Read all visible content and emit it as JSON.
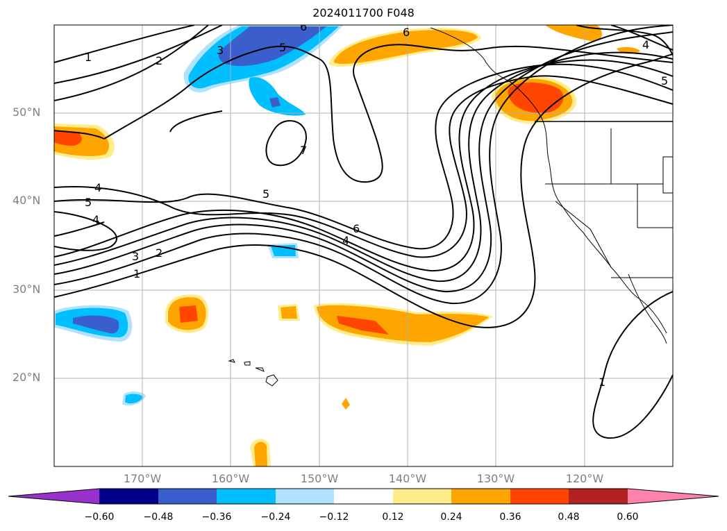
{
  "title": "2024011700 F048",
  "lat_labels": [
    "50°N",
    "40°N",
    "30°N",
    "20°N"
  ],
  "lon_labels": [
    "170°W",
    "160°W",
    "150°W",
    "140°W",
    "130°W",
    "120°W"
  ],
  "contour_labels": [
    "1",
    "2",
    "3",
    "6",
    "4",
    "5",
    "4",
    "5",
    "6",
    "3",
    "2",
    "1",
    "5",
    "6",
    "4",
    "7",
    "1",
    "4",
    "5"
  ],
  "colorbar": {
    "ticks": [
      "−0.60",
      "−0.48",
      "−0.36",
      "−0.24",
      "−0.12",
      "0.12",
      "0.24",
      "0.36",
      "0.48",
      "0.60"
    ],
    "colors": [
      "#9932cc",
      "#00008b",
      "#3a5fcd",
      "#00bfff",
      "#b0e2ff",
      "#ffffff",
      "#ffec8b",
      "#ffa500",
      "#ff4500",
      "#b22222",
      "#ff82ab"
    ]
  }
}
